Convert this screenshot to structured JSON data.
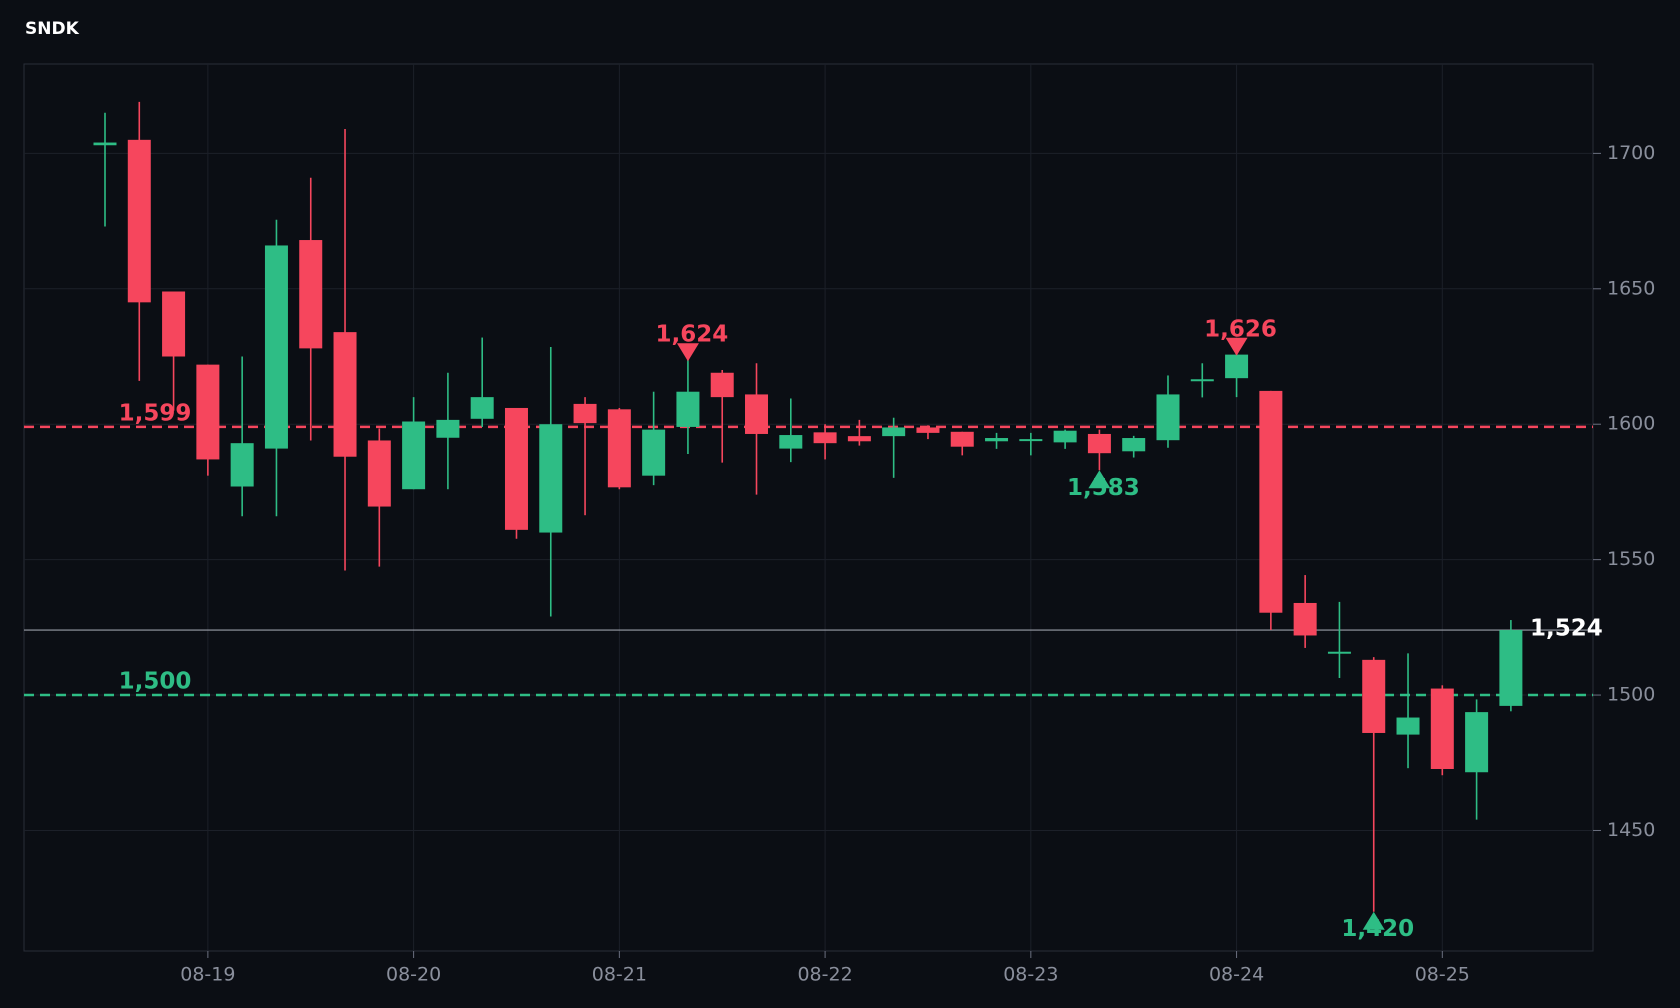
{
  "chart_data": {
    "type": "candlestick",
    "title": "SNDK",
    "categories": [
      null,
      null,
      null,
      "08-19",
      null,
      null,
      null,
      null,
      null,
      "08-20",
      null,
      null,
      null,
      null,
      null,
      "08-21",
      null,
      null,
      null,
      null,
      null,
      "08-22",
      null,
      null,
      null,
      null,
      null,
      "08-23",
      null,
      null,
      null,
      null,
      null,
      "08-24",
      null,
      null,
      null,
      null,
      null,
      "08-25",
      null,
      null
    ],
    "open": [
      1703,
      1705,
      1649,
      1622,
      1577,
      1591,
      1668,
      1634,
      1594,
      1576,
      1595,
      1602,
      1606,
      1560,
      1607.5,
      1605.5,
      1581,
      1599,
      1619,
      1611,
      1591,
      1597,
      1595.6,
      1595.6,
      1598.8,
      1597.2,
      1593.7,
      1594.1,
      1593.3,
      1596.4,
      1590,
      1594.1,
      1616.2,
      1617,
      1612.3,
      1534,
      1515.6,
      1513,
      1485.4,
      1502.4,
      1471.5,
      1496
    ],
    "high": [
      1715,
      1719,
      1649,
      1622,
      1625,
      1675.5,
      1691,
      1709,
      1598.4,
      1610,
      1619,
      1632,
      1606,
      1628.5,
      1610,
      1606,
      1612,
      1624,
      1620,
      1622.5,
      1609.5,
      1600,
      1601.6,
      1602.4,
      1599.6,
      1597.2,
      1596.8,
      1596.8,
      1598,
      1598,
      1595.7,
      1618,
      1622.5,
      1626,
      1612.3,
      1544.3,
      1534.4,
      1514,
      1515.4,
      1503.6,
      1498.4,
      1527.7
    ],
    "low": [
      1673,
      1616,
      1605,
      1581,
      1566,
      1566,
      1594,
      1546,
      1547.4,
      1576,
      1576,
      1599,
      1557.7,
      1529,
      1566.4,
      1576,
      1577.5,
      1589,
      1585.8,
      1574,
      1586,
      1587,
      1592.1,
      1580.2,
      1594.5,
      1588.5,
      1590.9,
      1588.5,
      1590.9,
      1583,
      1587.7,
      1591.3,
      1609.9,
      1610,
      1524,
      1517.4,
      1506.3,
      1420,
      1473,
      1470.4,
      1454,
      1494
    ],
    "close": [
      1704,
      1645,
      1625,
      1587,
      1593,
      1666,
      1628,
      1588,
      1569.6,
      1601,
      1601.6,
      1610,
      1561,
      1600,
      1600.4,
      1576.7,
      1598,
      1612,
      1610,
      1596.4,
      1596,
      1593,
      1593.7,
      1598.8,
      1596.8,
      1591.7,
      1594.9,
      1594.5,
      1597.6,
      1589.3,
      1594.9,
      1611,
      1616.6,
      1625.7,
      1530.4,
      1522,
      1516,
      1486,
      1491.7,
      1472.7,
      1493.7,
      1524
    ],
    "up_color": "#2ebd85",
    "down_color": "#f6465d",
    "ylim": [
      1405.5,
      1733
    ],
    "yticks": [
      1450,
      1500,
      1550,
      1600,
      1650,
      1700
    ],
    "grid": true,
    "levels": [
      {
        "value": 1599,
        "label": "1,599",
        "color": "#f6465d",
        "style": "dashed"
      },
      {
        "value": 1500,
        "label": "1,500",
        "color": "#2ebd85",
        "style": "dashed"
      },
      {
        "value": 1524,
        "label": "1,524",
        "color": "#ffffff",
        "style": "solid"
      }
    ],
    "annotations": [
      {
        "value": 1624,
        "label": "1,624",
        "at": "high"
      },
      {
        "value": 1626,
        "label": "1,626",
        "at": "high"
      },
      {
        "value": 1583,
        "label": "1,583",
        "at": "low"
      },
      {
        "value": 1420,
        "label": "1,420",
        "at": "low"
      }
    ]
  }
}
